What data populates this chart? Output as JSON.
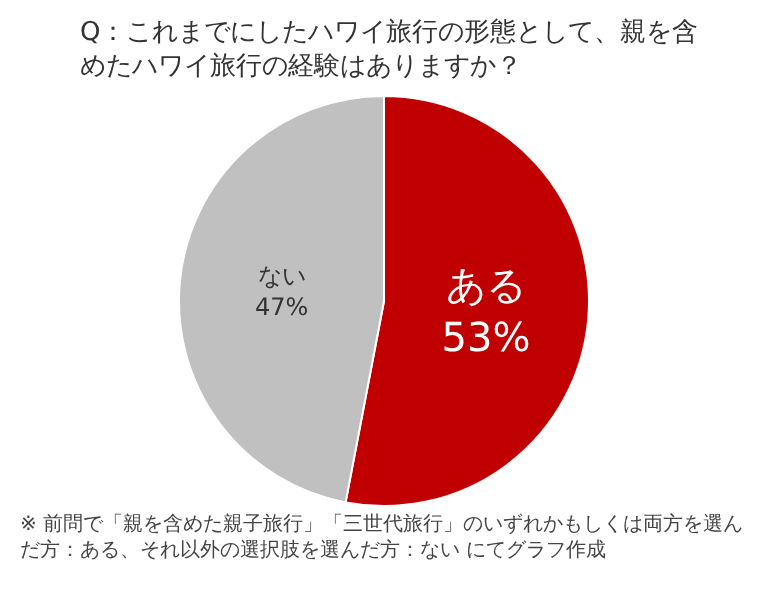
{
  "chart_data": {
    "type": "pie",
    "title": "Q：これまでにしたハワイ旅行の形態として、親を含めたハワイ旅行の経験はありますか？",
    "categories": [
      "ある",
      "ない"
    ],
    "values": [
      53,
      47
    ],
    "value_labels": [
      "53%",
      "47%"
    ],
    "colors": [
      "#c00000",
      "#c0c0c0"
    ],
    "legend": false,
    "annotations": [
      "※ 前問で「親を含めた親子旅行」「三世代旅行」のいずれかもしくは両方を選んだ方：ある、それ以外の選択肢を選んだ方：ない にてグラフ作成"
    ]
  }
}
